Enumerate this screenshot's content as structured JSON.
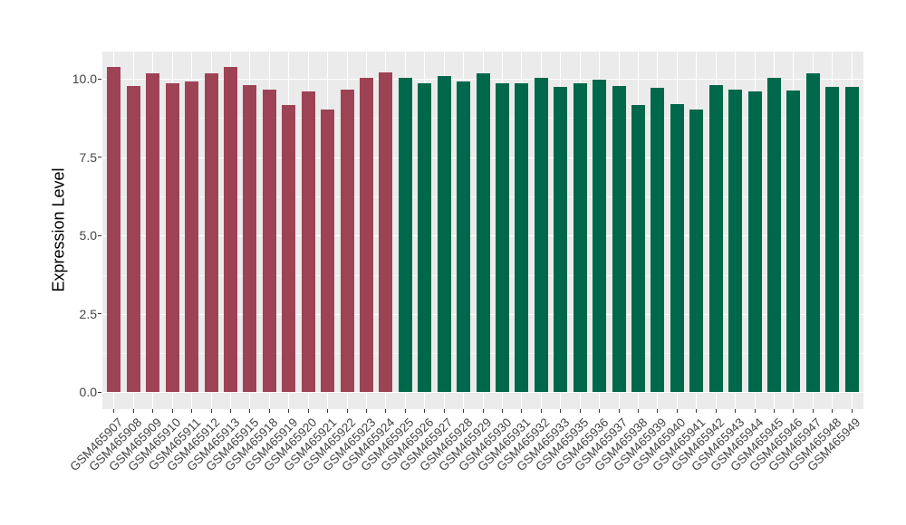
{
  "figure": {
    "background": "#FFFFFF"
  },
  "chart_data": {
    "type": "bar",
    "title": "",
    "xlabel": "",
    "ylabel": "Expression Level",
    "ylim": [
      0,
      10.9
    ],
    "yticks": [
      0,
      2.5,
      5,
      7.5,
      10
    ],
    "ytick_labels": [
      "0.0",
      "2.5",
      "5.0",
      "7.5",
      "10.0"
    ],
    "grid": "white major and minor horizontal lines plus vertical line per category on gray panel",
    "legend_position": "none",
    "panel_background": "#EBEBEB",
    "gridline_color": "#FFFFFF",
    "axis_text_color": "#444444",
    "categories": [
      "GSM465907",
      "GSM465908",
      "GSM465909",
      "GSM465910",
      "GSM465911",
      "GSM465912",
      "GSM465913",
      "GSM465915",
      "GSM465918",
      "GSM465919",
      "GSM465920",
      "GSM465921",
      "GSM465922",
      "GSM465923",
      "GSM465924",
      "GSM465925",
      "GSM465926",
      "GSM465927",
      "GSM465928",
      "GSM465929",
      "GSM465930",
      "GSM465931",
      "GSM465932",
      "GSM465933",
      "GSM465935",
      "GSM465936",
      "GSM465937",
      "GSM465938",
      "GSM465939",
      "GSM465940",
      "GSM465941",
      "GSM465942",
      "GSM465943",
      "GSM465944",
      "GSM465945",
      "GSM465946",
      "GSM465947",
      "GSM465948",
      "GSM465949"
    ],
    "values": [
      10.37,
      9.78,
      10.16,
      9.85,
      9.91,
      10.17,
      10.37,
      9.81,
      9.65,
      9.15,
      9.59,
      9.02,
      9.66,
      10.03,
      10.19,
      10.04,
      9.87,
      10.1,
      9.9,
      10.16,
      9.87,
      9.86,
      10.02,
      9.75,
      9.86,
      9.98,
      9.78,
      9.16,
      9.71,
      9.2,
      9.03,
      9.81,
      9.65,
      9.61,
      10.04,
      9.63,
      10.18,
      9.73,
      9.75
    ],
    "groups": [
      "A",
      "A",
      "A",
      "A",
      "A",
      "A",
      "A",
      "A",
      "A",
      "A",
      "A",
      "A",
      "A",
      "A",
      "A",
      "B",
      "B",
      "B",
      "B",
      "B",
      "B",
      "B",
      "B",
      "B",
      "B",
      "B",
      "B",
      "B",
      "B",
      "B",
      "B",
      "B",
      "B",
      "B",
      "B",
      "B",
      "B",
      "B",
      "B"
    ],
    "group_colors": {
      "A": "#9E4355",
      "B": "#00684A"
    }
  }
}
